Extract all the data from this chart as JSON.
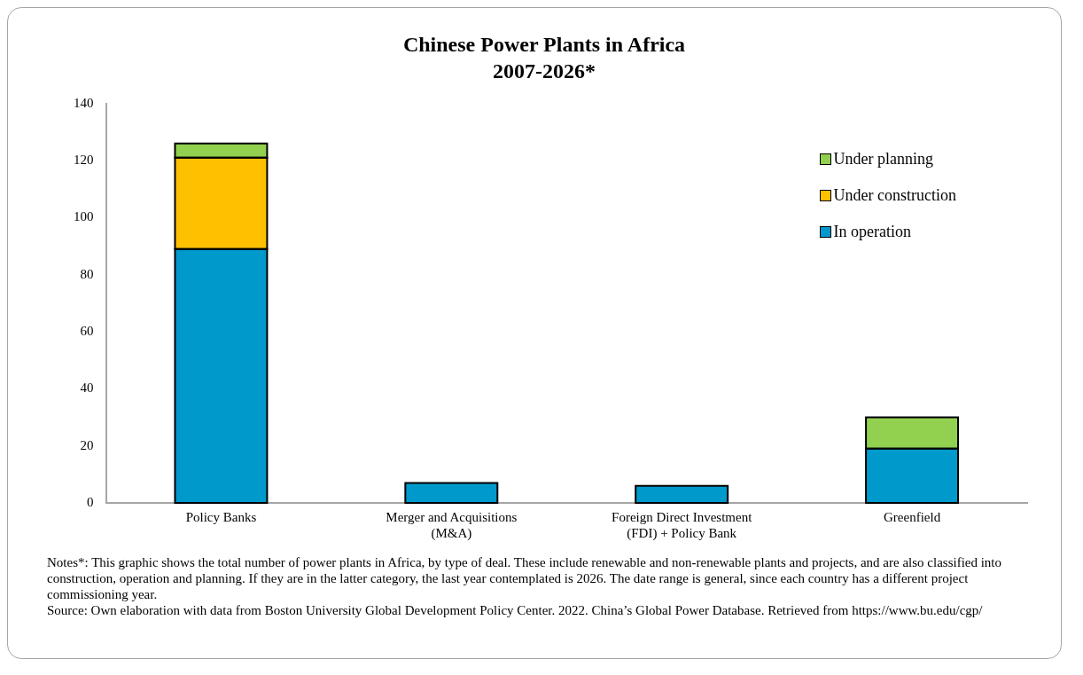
{
  "chart_data": {
    "type": "bar",
    "title": "Chinese Power Plants in Africa",
    "subtitle": "2007-2026*",
    "categories": [
      "Policy Banks",
      "Merger and Acquisitions (M&A)",
      "Foreign Direct Investment (FDI) + Policy Bank",
      "Greenfield"
    ],
    "stacked": true,
    "series": [
      {
        "name": "In operation",
        "color": "#0099cc",
        "values": [
          89,
          7,
          6,
          19
        ]
      },
      {
        "name": "Under construction",
        "color": "#ffc000",
        "values": [
          32,
          0,
          0,
          0
        ]
      },
      {
        "name": "Under planning",
        "color": "#92d050",
        "values": [
          5,
          0,
          0,
          11
        ]
      }
    ],
    "ylim": [
      0,
      140
    ],
    "yticks": [
      0,
      20,
      40,
      60,
      80,
      100,
      120,
      140
    ],
    "grid": false,
    "legend": "top right",
    "annotations": [
      "Notes*: This graphic shows the total number of power plants in Africa, by type of deal. These include renewable and non-renewable plants and projects, and are also classified into construction, operation and planning. If they are in the latter category, the last year contemplated is 2026. The date range is general, since each country has a different project commissioning year.",
      "Source: Own elaboration with data from Boston University Global Development Policy Center. 2022. China’s Global Power Database. Retrieved from https://www.bu.edu/cgp/"
    ]
  }
}
